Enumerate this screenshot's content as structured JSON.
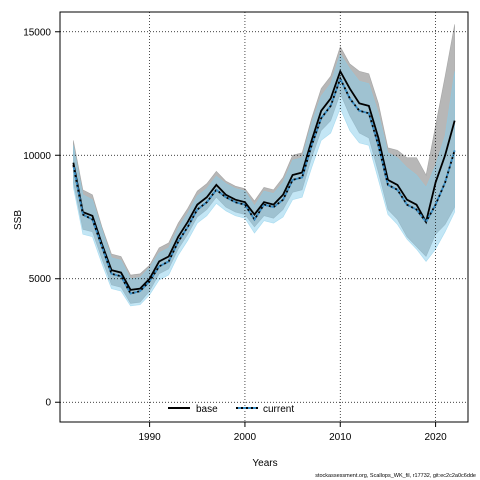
{
  "chart_data": {
    "type": "line",
    "xlabel": "Years",
    "ylabel": "SSB",
    "xlim": [
      1980.6,
      2023.4
    ],
    "ylim": [
      -800,
      15800
    ],
    "xticks": [
      1990,
      2000,
      2010,
      2020
    ],
    "yticks": [
      0,
      5000,
      10000,
      15000
    ],
    "grid": true,
    "legend_position": "bottom-center",
    "footer": "stockassessment.org, Scallops_WK_fil, r17732, git:ec2c2a0c6dde",
    "x": [
      1982,
      1983,
      1984,
      1985,
      1986,
      1987,
      1988,
      1989,
      1990,
      1991,
      1992,
      1993,
      1994,
      1995,
      1996,
      1997,
      1998,
      1999,
      2000,
      2001,
      2002,
      2003,
      2004,
      2005,
      2006,
      2007,
      2008,
      2009,
      2010,
      2011,
      2012,
      2013,
      2014,
      2015,
      2016,
      2017,
      2018,
      2019,
      2020,
      2021,
      2022
    ],
    "series": [
      {
        "name": "base",
        "line_style": "solid",
        "color": "#000000",
        "band_color": "#999999",
        "values": [
          9700,
          7700,
          7550,
          6400,
          5350,
          5250,
          4550,
          4600,
          5000,
          5700,
          5900,
          6700,
          7300,
          8000,
          8300,
          8800,
          8400,
          8200,
          8100,
          7600,
          8100,
          8000,
          8400,
          9200,
          9300,
          10600,
          11800,
          12300,
          13400,
          12700,
          12100,
          12000,
          10700,
          9000,
          8800,
          8200,
          8000,
          7300,
          8900,
          10000,
          11400
        ],
        "lower": [
          8900,
          7000,
          6900,
          5800,
          4750,
          4650,
          4000,
          4050,
          4500,
          5200,
          5400,
          6200,
          6800,
          7500,
          7800,
          8300,
          7900,
          7700,
          7600,
          7100,
          7550,
          7450,
          7800,
          8500,
          8600,
          9900,
          11000,
          11400,
          12500,
          11600,
          10900,
          10700,
          9300,
          7800,
          7400,
          6700,
          6300,
          5900,
          6800,
          7200,
          7900
        ],
        "upper": [
          10600,
          8600,
          8400,
          7100,
          6000,
          5900,
          5150,
          5200,
          5550,
          6250,
          6450,
          7250,
          7850,
          8550,
          8850,
          9350,
          8950,
          8750,
          8650,
          8150,
          8700,
          8600,
          9100,
          10000,
          10100,
          11500,
          12700,
          13200,
          14400,
          13700,
          13400,
          13300,
          12100,
          10300,
          10200,
          9900,
          9900,
          9200,
          11200,
          13200,
          15300
        ]
      },
      {
        "name": "current",
        "line_style": "dashed",
        "color": "#000000",
        "band_color": "#87ceeb",
        "values": [
          9600,
          7600,
          7400,
          6300,
          5200,
          5100,
          4400,
          4500,
          4900,
          5500,
          5700,
          6500,
          7100,
          7800,
          8100,
          8600,
          8300,
          8100,
          8000,
          7400,
          8000,
          7900,
          8200,
          9000,
          9100,
          10400,
          11500,
          12000,
          13100,
          12300,
          11800,
          11700,
          10400,
          8800,
          8600,
          8000,
          7800,
          7300,
          8000,
          8900,
          10200
        ],
        "lower": [
          8700,
          6800,
          6700,
          5600,
          4600,
          4500,
          3900,
          3950,
          4350,
          4950,
          5150,
          5950,
          6550,
          7250,
          7550,
          8050,
          7750,
          7550,
          7450,
          6850,
          7350,
          7250,
          7500,
          8200,
          8300,
          9500,
          10600,
          10900,
          11900,
          11000,
          10500,
          10400,
          9000,
          7600,
          7200,
          6600,
          6200,
          5700,
          6200,
          6900,
          7700
        ],
        "upper": [
          10400,
          8400,
          8200,
          7000,
          5850,
          5750,
          5000,
          5050,
          5450,
          6050,
          6250,
          7050,
          7650,
          8350,
          8650,
          9150,
          8850,
          8650,
          8550,
          7950,
          8550,
          8450,
          8900,
          9800,
          9900,
          11300,
          12400,
          12900,
          14100,
          13500,
          13000,
          12900,
          11700,
          10100,
          9900,
          9500,
          9200,
          8700,
          9600,
          10800,
          13400
        ]
      }
    ]
  }
}
